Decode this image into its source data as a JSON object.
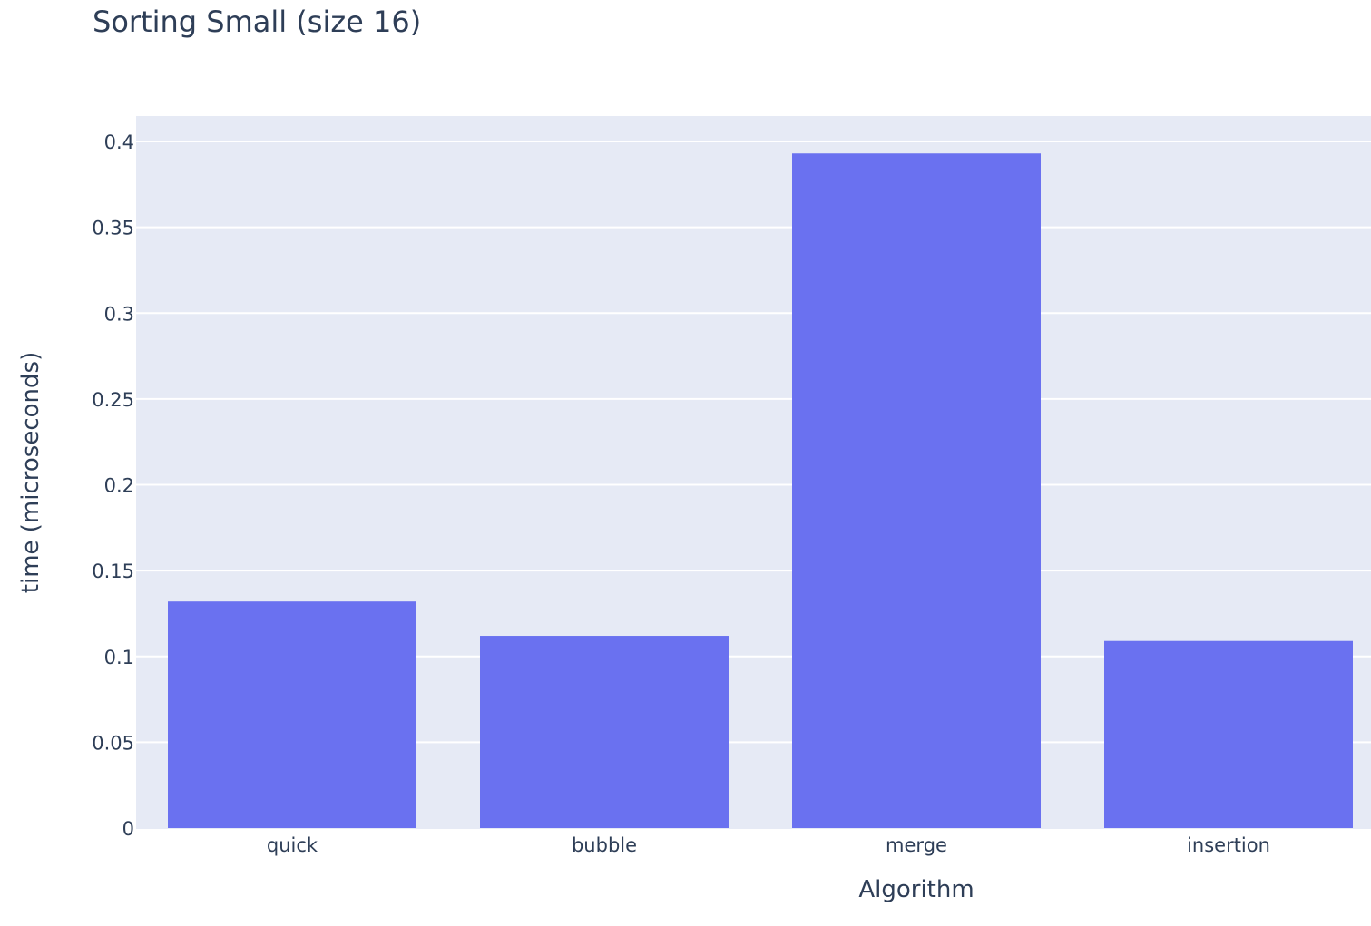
{
  "chart_data": {
    "type": "bar",
    "title": "Sorting Small (size 16)",
    "xlabel": "Algorithm",
    "ylabel": "time (microseconds)",
    "categories": [
      "quick",
      "bubble",
      "merge",
      "insertion"
    ],
    "values": [
      0.132,
      0.112,
      0.393,
      0.109
    ],
    "ylim": [
      0,
      0.415
    ],
    "yticks": [
      0,
      0.05,
      0.1,
      0.15,
      0.2,
      0.25,
      0.3,
      0.35,
      0.4
    ],
    "ytick_labels": [
      "0",
      "0.05",
      "0.1",
      "0.15",
      "0.2",
      "0.25",
      "0.3",
      "0.35",
      "0.4"
    ],
    "grid": true,
    "colors": {
      "bar": "#6a71f0",
      "plot_background": "#e6eaf5",
      "gridline": "#ffffff",
      "text": "#2e3e57"
    }
  }
}
